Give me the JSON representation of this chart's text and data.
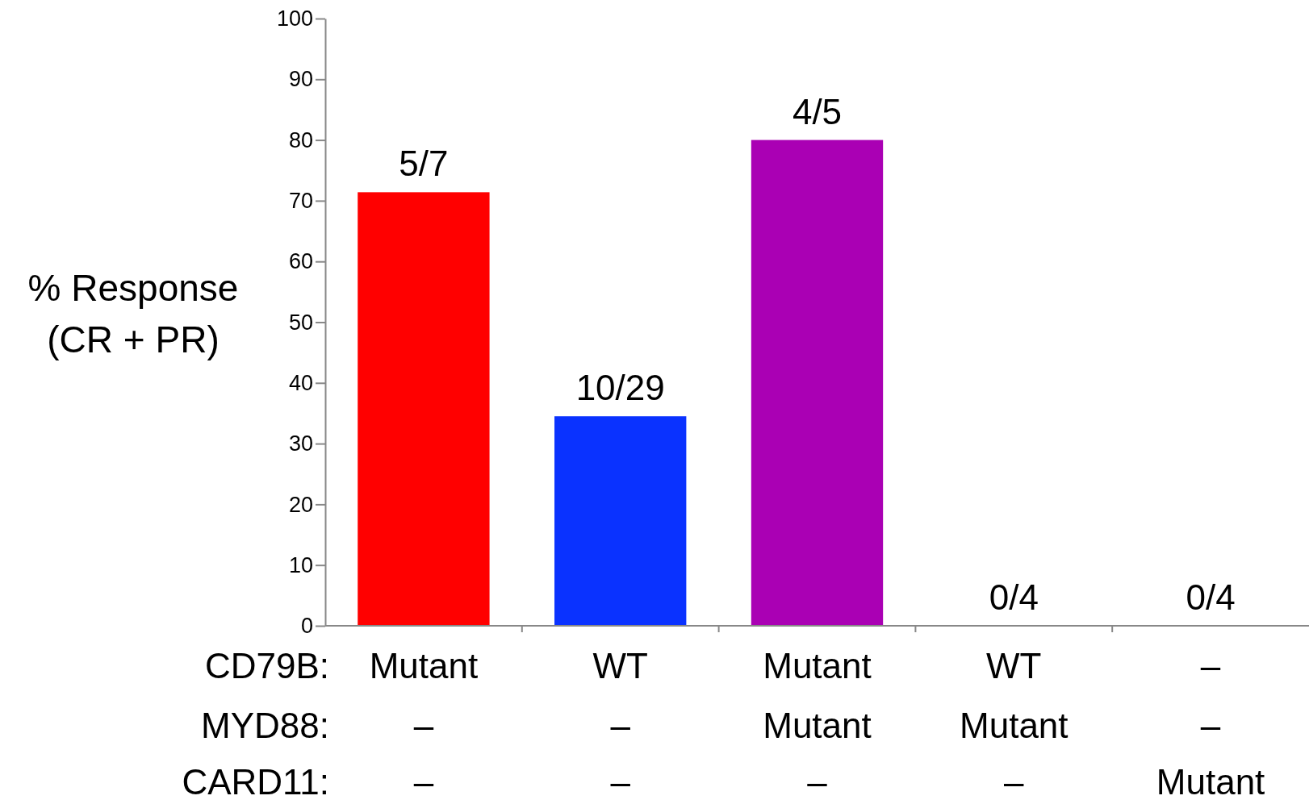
{
  "chart_data": {
    "type": "bar",
    "ylabel": "% Response\n(CR + PR)",
    "categories": [
      "Mutant\n–\n–",
      "WT\n–\n–",
      "Mutant\nMutant\n–",
      "WT\nMutant\n–",
      "–\n–\nMutant"
    ],
    "values": [
      71.4,
      34.5,
      80,
      0,
      0
    ],
    "colors": [
      "#ff0000",
      "#0a32ff",
      "#aa00b4",
      "#aa00b4",
      "#aa00b4"
    ],
    "ylim": [
      0,
      100
    ],
    "yticks": [
      0,
      10,
      20,
      30,
      40,
      50,
      60,
      70,
      80,
      90,
      100
    ],
    "grid": false,
    "annotations": [
      "CD79B:",
      "MYD88:",
      "CARD11:",
      {
        "text": "5/7",
        "x": "Mutant\n–\n–",
        "y": 71.4
      },
      {
        "text": "10/29",
        "x": "WT\n–\n–",
        "y": 34.5
      },
      {
        "text": "4/5",
        "x": "Mutant\nMutant\n–",
        "y": 80
      },
      {
        "text": "0/4",
        "x": "WT\nMutant\n–",
        "y": 0
      },
      {
        "text": "0/4",
        "x": "–\n–\nMutant",
        "y": 0
      }
    ]
  }
}
